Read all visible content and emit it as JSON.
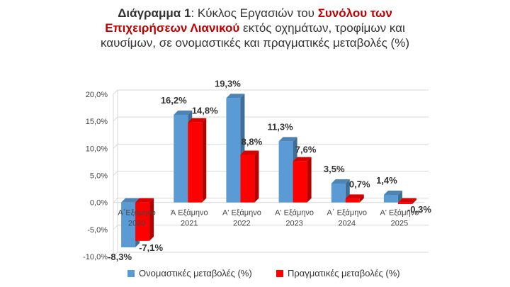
{
  "title": {
    "part1": "Διάγραμμα 1",
    "part2": ": Κύκλος Εργασιών του ",
    "part3": "Συνόλου των Επιχειρήσεων Λιανικού",
    "part4": " εκτός οχημάτων, τροφίμων και καυσίμων, σε ονομαστικές και πραγματικές μεταβολές (%)"
  },
  "chart_data": {
    "type": "bar",
    "categories": [
      [
        "Α΄Εξάμηνο",
        "2020"
      ],
      [
        "Ά Εξάμηνο",
        "2021"
      ],
      [
        "Α' Εξάμηνο",
        "2022"
      ],
      [
        "Α' Εξάμηνο",
        "2023"
      ],
      [
        "Α΄ Εξάμηνο",
        "2024"
      ],
      [
        "Α' Εξάμηνο",
        "2025"
      ]
    ],
    "series": [
      {
        "name": "Ονομαστικές μεταβολές (%)",
        "color": "#5b9bd5",
        "values": [
          -8.3,
          16.2,
          19.3,
          11.3,
          3.5,
          1.4
        ],
        "labels": [
          "-8,3%",
          "16,2%",
          "19,3%",
          "11,3%",
          "3,5%",
          "1,4%"
        ]
      },
      {
        "name": "Πραγματικές μεταβολές (%)",
        "color": "#ff0000",
        "values": [
          -7.1,
          14.8,
          8.8,
          7.6,
          0.7,
          -0.3
        ],
        "labels": [
          "-7,1%",
          "14,8%",
          "8,8%",
          "7,6%",
          "0,7%",
          "-0,3%"
        ]
      }
    ],
    "yticks": [
      "-10,0%",
      "-5,0%",
      "0,0%",
      "5,0%",
      "10,0%",
      "15,0%",
      "20,0%"
    ],
    "ytick_values": [
      -10,
      -5,
      0,
      5,
      10,
      15,
      20
    ],
    "ylim": [
      -10,
      20
    ],
    "grid": true,
    "legend": "bottom"
  }
}
